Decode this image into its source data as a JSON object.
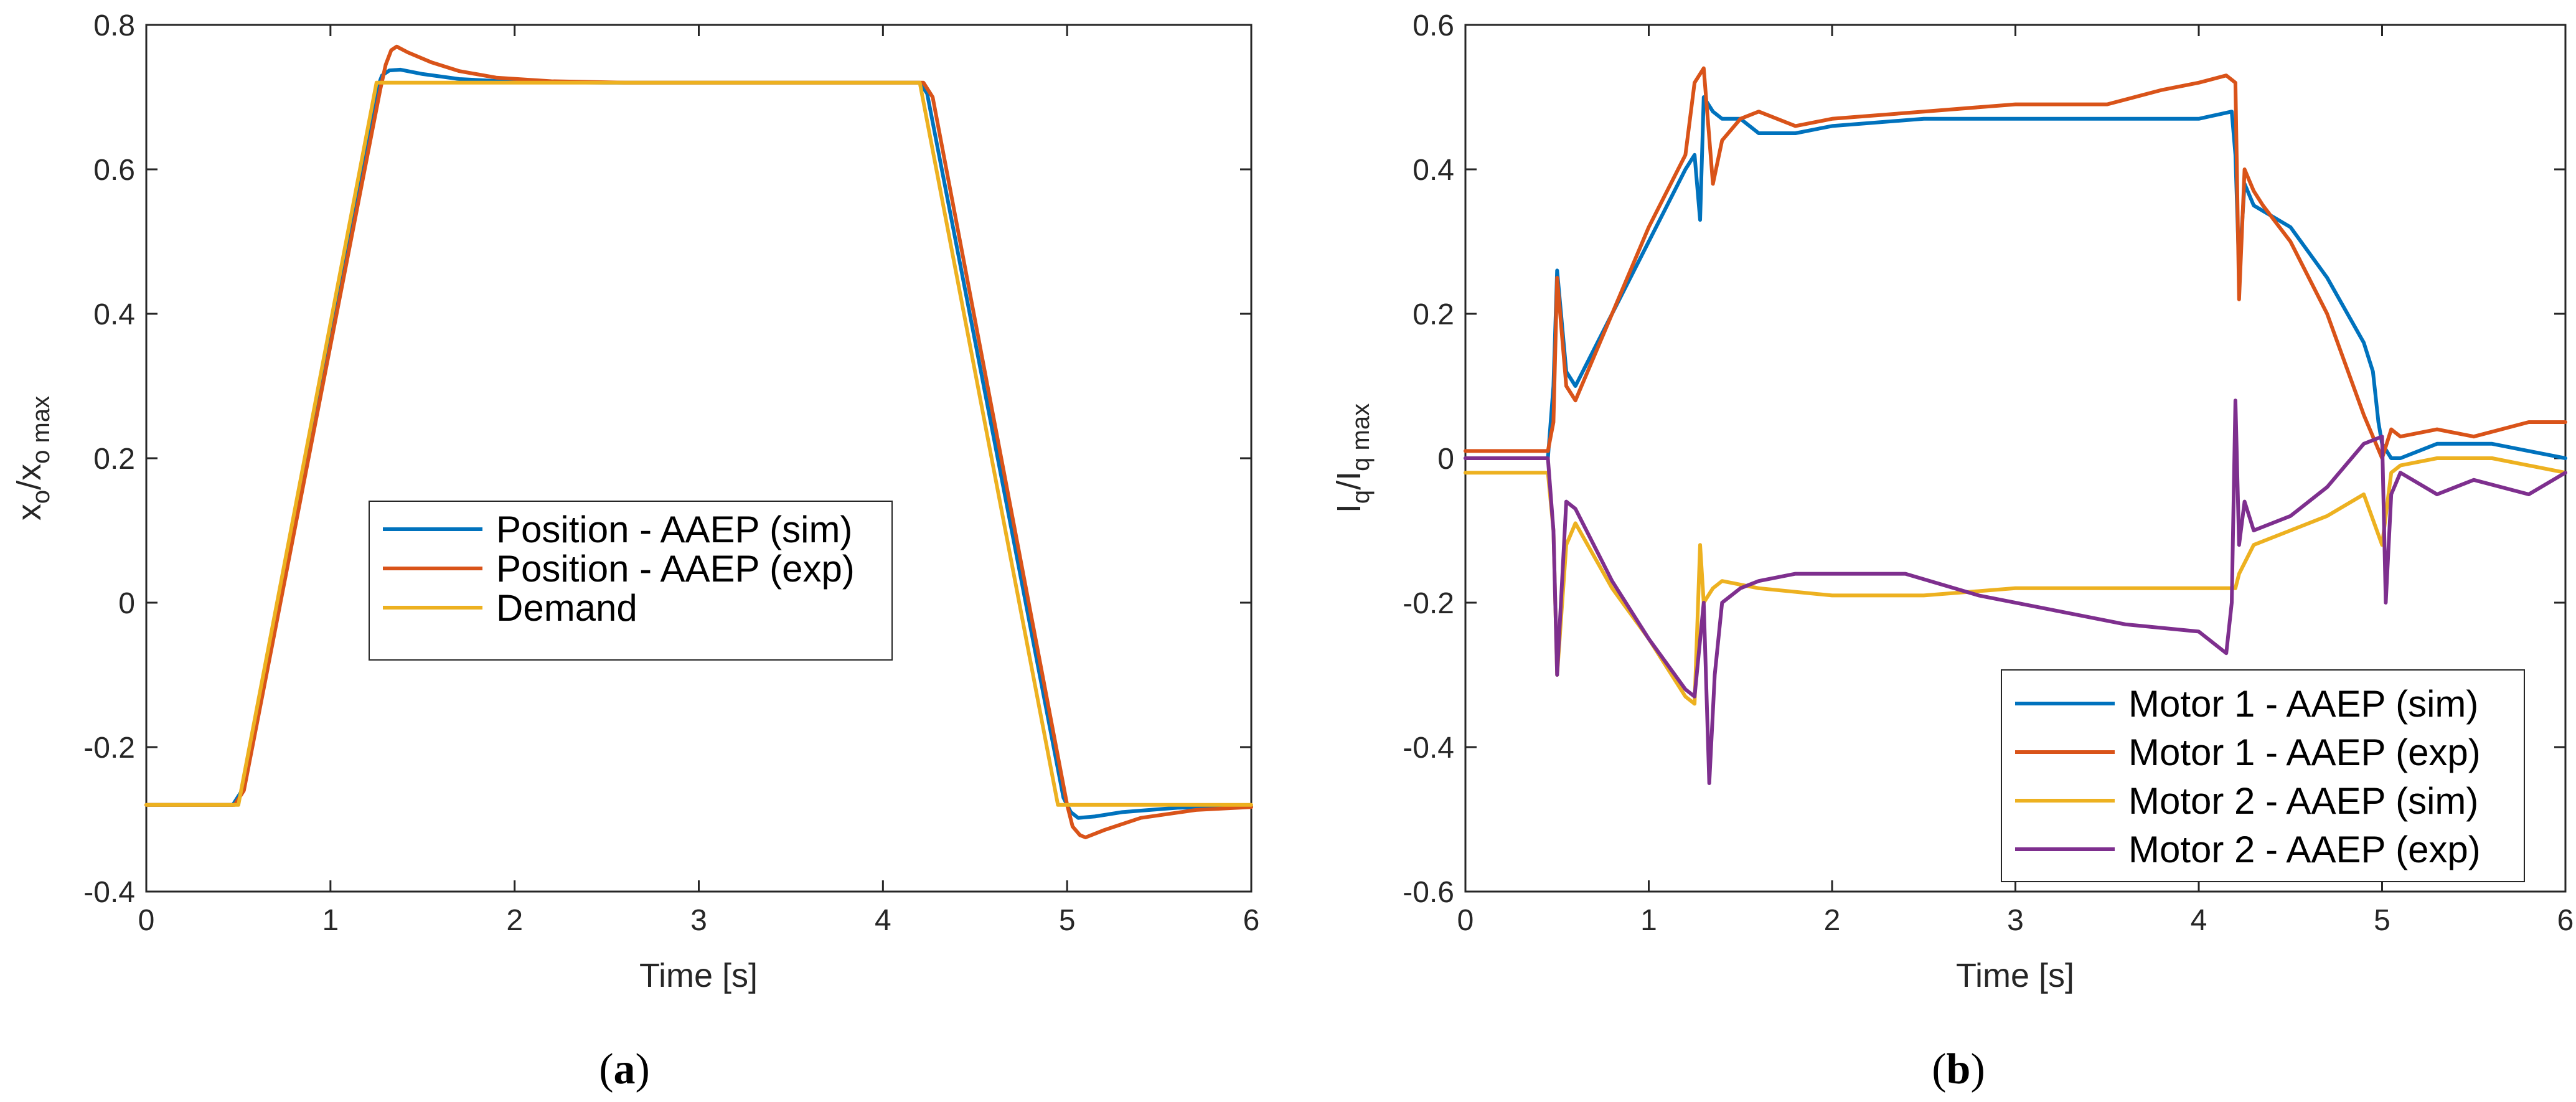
{
  "chart_data": [
    {
      "type": "line",
      "panel_label": {
        "open": "(",
        "letter": "a",
        "close": ")"
      },
      "xlabel": "Time [s]",
      "ylabel": {
        "base1": "x",
        "sub1": "o",
        "slash": "/x",
        "sub2": "o max"
      },
      "xlim": [
        0,
        6
      ],
      "ylim": [
        -0.4,
        0.8
      ],
      "xticks": [
        0,
        1,
        2,
        3,
        4,
        5,
        6
      ],
      "xtick_labels": [
        "0",
        "1",
        "2",
        "3",
        "4",
        "5",
        "6"
      ],
      "yticks": [
        -0.4,
        -0.2,
        0,
        0.2,
        0.4,
        0.6,
        0.8
      ],
      "ytick_labels": [
        "-0.4",
        "-0.2",
        "0",
        "0.2",
        "0.4",
        "0.6",
        "0.8"
      ],
      "grid": false,
      "legend_position": "center",
      "series": [
        {
          "name": "Position - AAEP (sim)",
          "color": "#0072BD",
          "x": [
            0,
            0.47,
            0.52,
            1.25,
            1.28,
            1.32,
            1.38,
            1.5,
            1.7,
            2.0,
            2.5,
            4.2,
            4.24,
            4.98,
            5.02,
            5.06,
            5.15,
            5.3,
            5.6,
            6.0
          ],
          "y": [
            -0.28,
            -0.28,
            -0.26,
            0.71,
            0.73,
            0.737,
            0.738,
            0.732,
            0.725,
            0.721,
            0.72,
            0.72,
            0.705,
            -0.27,
            -0.29,
            -0.298,
            -0.296,
            -0.29,
            -0.284,
            -0.282
          ]
        },
        {
          "name": "Position - AAEP (exp)",
          "color": "#D95319",
          "x": [
            0,
            0.48,
            0.53,
            1.27,
            1.3,
            1.33,
            1.36,
            1.42,
            1.55,
            1.7,
            1.9,
            2.2,
            2.6,
            4.22,
            4.27,
            5.0,
            5.03,
            5.07,
            5.1,
            5.2,
            5.4,
            5.7,
            6.0
          ],
          "y": [
            -0.28,
            -0.28,
            -0.26,
            0.71,
            0.745,
            0.765,
            0.77,
            0.762,
            0.748,
            0.736,
            0.727,
            0.722,
            0.72,
            0.72,
            0.7,
            -0.28,
            -0.31,
            -0.322,
            -0.325,
            -0.315,
            -0.298,
            -0.287,
            -0.283
          ]
        },
        {
          "name": "Demand",
          "color": "#EDB120",
          "x": [
            0,
            0.5,
            1.25,
            4.2,
            4.95,
            6.0
          ],
          "y": [
            -0.28,
            -0.28,
            0.72,
            0.72,
            -0.28,
            -0.28
          ]
        }
      ]
    },
    {
      "type": "line",
      "panel_label": {
        "open": "(",
        "letter": "b",
        "close": ")"
      },
      "xlabel": "Time [s]",
      "ylabel": {
        "base1": "I",
        "sub1": "q",
        "slash": "/I",
        "sub2": "q max"
      },
      "xlim": [
        0,
        6
      ],
      "ylim": [
        -0.6,
        0.6
      ],
      "xticks": [
        0,
        1,
        2,
        3,
        4,
        5,
        6
      ],
      "xtick_labels": [
        "0",
        "1",
        "2",
        "3",
        "4",
        "5",
        "6"
      ],
      "yticks": [
        -0.6,
        -0.4,
        -0.2,
        0,
        0.2,
        0.4,
        0.6
      ],
      "ytick_labels": [
        "-0.6",
        "-0.4",
        "-0.2",
        "0",
        "0.2",
        "0.4",
        "0.6"
      ],
      "grid": false,
      "legend_position": "bottom-right",
      "series": [
        {
          "name": "Motor 1 - AAEP (sim)",
          "color": "#0072BD",
          "x": [
            0,
            0.45,
            0.48,
            0.5,
            0.55,
            0.6,
            0.8,
            1.0,
            1.2,
            1.25,
            1.28,
            1.3,
            1.35,
            1.4,
            1.5,
            1.6,
            1.8,
            2.0,
            2.5,
            3.0,
            3.5,
            4.0,
            4.18,
            4.2,
            4.22,
            4.25,
            4.3,
            4.5,
            4.7,
            4.9,
            4.95,
            4.98,
            5.0,
            5.05,
            5.1,
            5.3,
            5.6,
            5.8,
            6.0
          ],
          "y": [
            0.0,
            0.0,
            0.1,
            0.26,
            0.12,
            0.1,
            0.2,
            0.3,
            0.4,
            0.42,
            0.33,
            0.5,
            0.48,
            0.47,
            0.47,
            0.45,
            0.45,
            0.46,
            0.47,
            0.47,
            0.47,
            0.47,
            0.48,
            0.42,
            0.26,
            0.38,
            0.35,
            0.32,
            0.25,
            0.16,
            0.12,
            0.05,
            0.02,
            0.0,
            0.0,
            0.02,
            0.02,
            0.01,
            0.0
          ]
        },
        {
          "name": "Motor 1 - AAEP (exp)",
          "color": "#D95319",
          "x": [
            0,
            0.45,
            0.48,
            0.5,
            0.55,
            0.6,
            0.8,
            1.0,
            1.2,
            1.25,
            1.3,
            1.35,
            1.4,
            1.5,
            1.6,
            1.8,
            2.0,
            2.5,
            3.0,
            3.5,
            3.8,
            4.0,
            4.15,
            4.2,
            4.22,
            4.25,
            4.3,
            4.35,
            4.5,
            4.7,
            4.9,
            5.0,
            5.05,
            5.1,
            5.3,
            5.5,
            5.8,
            6.0
          ],
          "y": [
            0.01,
            0.01,
            0.05,
            0.25,
            0.1,
            0.08,
            0.2,
            0.32,
            0.42,
            0.52,
            0.54,
            0.38,
            0.44,
            0.47,
            0.48,
            0.46,
            0.47,
            0.48,
            0.49,
            0.49,
            0.51,
            0.52,
            0.53,
            0.52,
            0.22,
            0.4,
            0.37,
            0.35,
            0.3,
            0.2,
            0.06,
            0.0,
            0.04,
            0.03,
            0.04,
            0.03,
            0.05,
            0.05
          ]
        },
        {
          "name": "Motor 2 - AAEP (sim)",
          "color": "#EDB120",
          "x": [
            0,
            0.45,
            0.48,
            0.5,
            0.55,
            0.6,
            0.8,
            1.0,
            1.2,
            1.25,
            1.28,
            1.3,
            1.35,
            1.4,
            1.6,
            2.0,
            2.5,
            3.0,
            3.5,
            4.0,
            4.2,
            4.22,
            4.3,
            4.5,
            4.7,
            4.9,
            5.0,
            5.05,
            5.1,
            5.3,
            5.6,
            6.0
          ],
          "y": [
            -0.02,
            -0.02,
            -0.1,
            -0.3,
            -0.12,
            -0.09,
            -0.18,
            -0.25,
            -0.33,
            -0.34,
            -0.12,
            -0.2,
            -0.18,
            -0.17,
            -0.18,
            -0.19,
            -0.19,
            -0.18,
            -0.18,
            -0.18,
            -0.18,
            -0.16,
            -0.12,
            -0.1,
            -0.08,
            -0.05,
            -0.12,
            -0.02,
            -0.01,
            0.0,
            0.0,
            -0.02
          ]
        },
        {
          "name": "Motor 2 - AAEP (exp)",
          "color": "#7E2F8E",
          "x": [
            0,
            0.45,
            0.48,
            0.5,
            0.55,
            0.6,
            0.8,
            1.0,
            1.2,
            1.25,
            1.3,
            1.33,
            1.36,
            1.4,
            1.5,
            1.6,
            1.8,
            2.0,
            2.4,
            2.8,
            3.2,
            3.6,
            4.0,
            4.15,
            4.18,
            4.2,
            4.22,
            4.25,
            4.3,
            4.5,
            4.7,
            4.9,
            5.0,
            5.02,
            5.05,
            5.1,
            5.3,
            5.5,
            5.8,
            6.0
          ],
          "y": [
            0.0,
            0.0,
            -0.1,
            -0.3,
            -0.06,
            -0.07,
            -0.17,
            -0.25,
            -0.32,
            -0.33,
            -0.2,
            -0.45,
            -0.3,
            -0.2,
            -0.18,
            -0.17,
            -0.16,
            -0.16,
            -0.16,
            -0.19,
            -0.21,
            -0.23,
            -0.24,
            -0.27,
            -0.2,
            0.08,
            -0.12,
            -0.06,
            -0.1,
            -0.08,
            -0.04,
            0.02,
            0.03,
            -0.2,
            -0.05,
            -0.02,
            -0.05,
            -0.03,
            -0.05,
            -0.02
          ]
        }
      ]
    }
  ]
}
